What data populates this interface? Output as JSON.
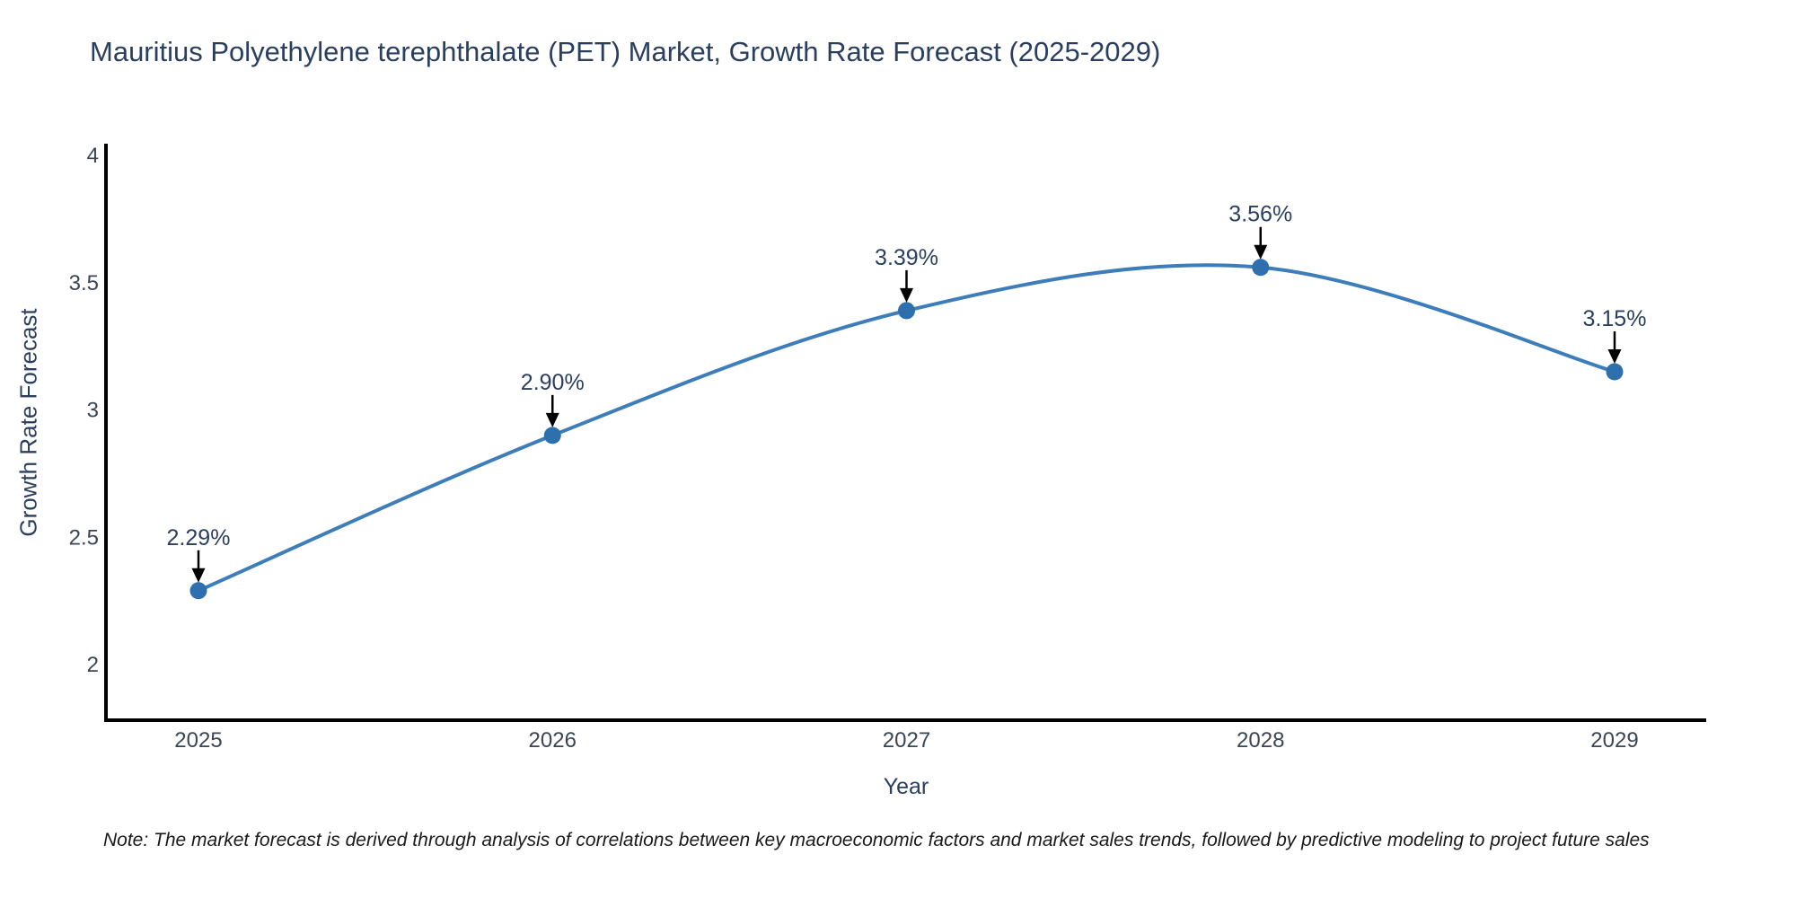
{
  "figure": {
    "title": "Mauritius Polyethylene terephthalate (PET) Market, Growth Rate Forecast (2025-2029)",
    "note": "Note: The market forecast is derived through analysis of correlations between key macroeconomic factors and market sales trends, followed by predictive modeling to project future sales"
  },
  "chart_data": {
    "type": "line",
    "title": "Mauritius Polyethylene terephthalate (PET) Market, Growth Rate Forecast (2025-2029)",
    "xlabel": "Year",
    "ylabel": "Growth Rate Forecast",
    "line_shape": "spline",
    "grid": false,
    "legend_position": "none",
    "categories": [
      "2025",
      "2026",
      "2027",
      "2028",
      "2029"
    ],
    "series": [
      {
        "name": "Growth Rate Forecast",
        "values": [
          2.29,
          2.9,
          3.39,
          3.56,
          3.15
        ]
      }
    ],
    "point_labels": [
      "2.29%",
      "2.90%",
      "3.39%",
      "3.56%",
      "3.15%"
    ],
    "y_ticks": {
      "values": [
        2,
        2.5,
        3,
        3.5,
        4
      ],
      "labels": [
        "2",
        "2.5",
        "3",
        "3.5",
        "4"
      ]
    },
    "ylim": [
      1.78,
      4.05
    ],
    "annotation_style": "black-down-arrow-to-point",
    "colors": {
      "line": "#3d7eba",
      "marker": "#2e6fad",
      "arrow": "#000000",
      "axis_line": "#000000",
      "text": "#2a3f5f",
      "tick_text": "#3b4654",
      "note_text": "#1a1a1a",
      "background": "#ffffff"
    }
  }
}
